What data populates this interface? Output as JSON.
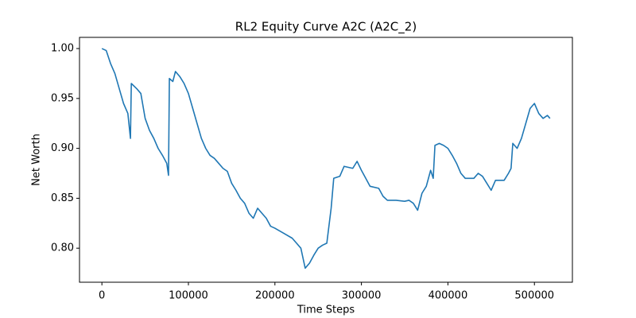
{
  "chart_data": {
    "type": "line",
    "title": "RL2 Equity Curve A2C (A2C_2)",
    "x_label": "Time Steps",
    "y_label": "Net Worth",
    "x": [
      0,
      5000,
      10000,
      15000,
      20000,
      25000,
      30000,
      33000,
      34000,
      40000,
      45000,
      50000,
      55000,
      60000,
      65000,
      70000,
      75000,
      77000,
      78000,
      82000,
      85000,
      90000,
      95000,
      100000,
      105000,
      110000,
      115000,
      120000,
      125000,
      130000,
      135000,
      140000,
      145000,
      150000,
      155000,
      160000,
      165000,
      170000,
      175000,
      180000,
      185000,
      190000,
      195000,
      200000,
      210000,
      220000,
      225000,
      230000,
      235000,
      240000,
      245000,
      250000,
      255000,
      260000,
      265000,
      268000,
      275000,
      280000,
      290000,
      295000,
      300000,
      305000,
      310000,
      320000,
      325000,
      330000,
      340000,
      350000,
      355000,
      360000,
      365000,
      370000,
      375000,
      380000,
      383000,
      385000,
      390000,
      395000,
      400000,
      405000,
      410000,
      415000,
      420000,
      430000,
      435000,
      440000,
      445000,
      450000,
      455000,
      465000,
      470000,
      473000,
      475000,
      480000,
      485000,
      490000,
      495000,
      500000,
      505000,
      510000,
      515000,
      518000
    ],
    "series": [
      {
        "name": "Net Worth",
        "color": "#1f77b4",
        "values": [
          1.0,
          0.998,
          0.985,
          0.975,
          0.96,
          0.945,
          0.935,
          0.91,
          0.965,
          0.96,
          0.955,
          0.93,
          0.918,
          0.91,
          0.9,
          0.893,
          0.885,
          0.873,
          0.97,
          0.967,
          0.977,
          0.972,
          0.965,
          0.955,
          0.94,
          0.925,
          0.91,
          0.9,
          0.893,
          0.89,
          0.885,
          0.88,
          0.877,
          0.865,
          0.858,
          0.85,
          0.845,
          0.835,
          0.83,
          0.84,
          0.835,
          0.83,
          0.822,
          0.82,
          0.815,
          0.81,
          0.805,
          0.8,
          0.78,
          0.785,
          0.793,
          0.8,
          0.803,
          0.805,
          0.84,
          0.87,
          0.872,
          0.882,
          0.88,
          0.887,
          0.878,
          0.87,
          0.862,
          0.86,
          0.852,
          0.848,
          0.848,
          0.847,
          0.848,
          0.845,
          0.838,
          0.855,
          0.862,
          0.878,
          0.87,
          0.903,
          0.905,
          0.903,
          0.9,
          0.893,
          0.885,
          0.875,
          0.87,
          0.87,
          0.875,
          0.872,
          0.865,
          0.858,
          0.868,
          0.868,
          0.875,
          0.88,
          0.905,
          0.9,
          0.91,
          0.925,
          0.94,
          0.945,
          0.935,
          0.93,
          0.933,
          0.93
        ]
      }
    ],
    "xlim": [
      -25900,
      543900
    ],
    "ylim": [
      0.7659,
      1.0112
    ],
    "xticks": [
      0,
      100000,
      200000,
      300000,
      400000,
      500000
    ],
    "yticks": [
      {
        "value": 0.8,
        "label": "0.80"
      },
      {
        "value": 0.85,
        "label": "0.85"
      },
      {
        "value": 0.9,
        "label": "0.90"
      },
      {
        "value": 0.95,
        "label": "0.95"
      },
      {
        "value": 1.0,
        "label": "1.00"
      }
    ],
    "grid": false
  }
}
